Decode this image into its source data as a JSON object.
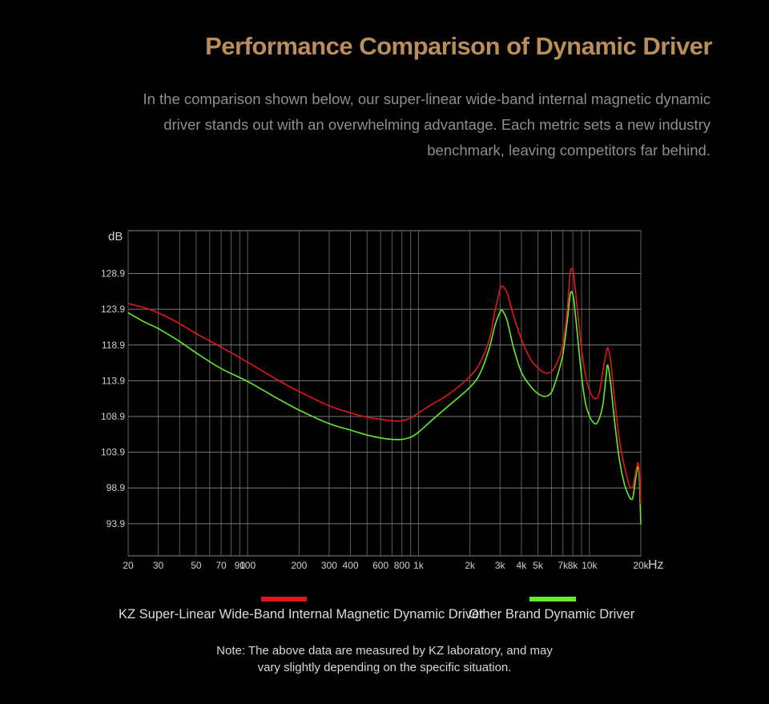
{
  "header": {
    "title": "Performance Comparison of Dynamic Driver",
    "subtitle": "In the comparison shown below, our super-linear wide-band internal magnetic dynamic driver stands out with an overwhelming advantage. Each metric sets a new industry benchmark, leaving competitors far behind."
  },
  "chart_data": {
    "type": "line",
    "x_scale": "log",
    "xlim": [
      20,
      20000
    ],
    "ylim": [
      89.4,
      134.9
    ],
    "ylabel": "dB",
    "xlabel": "Hz",
    "grid": true,
    "y_ticks": [
      128.9,
      123.9,
      118.9,
      113.9,
      108.9,
      103.9,
      98.9,
      93.9
    ],
    "y_tick_labels": [
      "128.9",
      "123.9",
      "118.9",
      "113.9",
      "108.9",
      "103.9",
      "98.9",
      "93.9"
    ],
    "x_ticks": [
      20,
      30,
      50,
      70,
      90,
      100,
      200,
      300,
      400,
      600,
      800,
      1000,
      2000,
      3000,
      4000,
      5000,
      7000,
      8000,
      10000,
      20000
    ],
    "x_tick_labels": [
      "20",
      "30",
      "50",
      "70",
      "90",
      "100",
      "200",
      "300",
      "400",
      "600",
      "800",
      "1k",
      "2k",
      "3k",
      "4k",
      "5k",
      "7k",
      "8k",
      "10k",
      "20k"
    ],
    "x_grid": [
      20,
      30,
      40,
      50,
      60,
      70,
      80,
      90,
      100,
      200,
      300,
      400,
      500,
      600,
      700,
      800,
      900,
      1000,
      2000,
      3000,
      4000,
      5000,
      6000,
      7000,
      8000,
      9000,
      10000,
      20000
    ],
    "series": [
      {
        "name": "KZ Super-Linear Wide-Band Internal Magnetic Dynamic Driver",
        "color": "#e4161c",
        "points": [
          [
            20,
            124.7
          ],
          [
            25,
            124.1
          ],
          [
            30,
            123.4
          ],
          [
            40,
            121.9
          ],
          [
            50,
            120.5
          ],
          [
            70,
            118.6
          ],
          [
            100,
            116.5
          ],
          [
            150,
            114.0
          ],
          [
            200,
            112.4
          ],
          [
            300,
            110.4
          ],
          [
            400,
            109.4
          ],
          [
            500,
            108.8
          ],
          [
            600,
            108.5
          ],
          [
            700,
            108.3
          ],
          [
            800,
            108.3
          ],
          [
            900,
            108.7
          ],
          [
            1000,
            109.4
          ],
          [
            1200,
            110.6
          ],
          [
            1500,
            112.0
          ],
          [
            2000,
            114.5
          ],
          [
            2300,
            116.5
          ],
          [
            2600,
            119.7
          ],
          [
            2800,
            123.6
          ],
          [
            3000,
            126.7
          ],
          [
            3100,
            127.1
          ],
          [
            3300,
            126.2
          ],
          [
            3600,
            123.0
          ],
          [
            4000,
            119.7
          ],
          [
            4500,
            117.0
          ],
          [
            5000,
            115.7
          ],
          [
            5500,
            115.0
          ],
          [
            6000,
            115.2
          ],
          [
            6500,
            116.5
          ],
          [
            7000,
            119.0
          ],
          [
            7400,
            123.5
          ],
          [
            7700,
            128.7
          ],
          [
            7900,
            129.6
          ],
          [
            8100,
            128.6
          ],
          [
            8500,
            124.0
          ],
          [
            9000,
            118.4
          ],
          [
            9500,
            114.6
          ],
          [
            10000,
            112.6
          ],
          [
            10500,
            111.6
          ],
          [
            11000,
            111.4
          ],
          [
            11500,
            112.5
          ],
          [
            12000,
            115.3
          ],
          [
            12500,
            117.6
          ],
          [
            12800,
            118.5
          ],
          [
            13300,
            116.8
          ],
          [
            14000,
            111.6
          ],
          [
            15000,
            105.6
          ],
          [
            16000,
            102.0
          ],
          [
            17000,
            99.5
          ],
          [
            17600,
            98.9
          ],
          [
            18000,
            99.2
          ],
          [
            18500,
            100.6
          ],
          [
            19000,
            102.0
          ],
          [
            19300,
            102.4
          ],
          [
            19600,
            101.2
          ],
          [
            20000,
            96.6
          ]
        ]
      },
      {
        "name": "Other Brand Dynamic Driver",
        "color": "#64ec2a",
        "points": [
          [
            20,
            123.4
          ],
          [
            25,
            122.1
          ],
          [
            30,
            121.2
          ],
          [
            40,
            119.4
          ],
          [
            50,
            117.8
          ],
          [
            70,
            115.6
          ],
          [
            100,
            113.8
          ],
          [
            150,
            111.4
          ],
          [
            200,
            109.8
          ],
          [
            300,
            107.9
          ],
          [
            400,
            107.0
          ],
          [
            500,
            106.3
          ],
          [
            600,
            105.9
          ],
          [
            700,
            105.7
          ],
          [
            800,
            105.7
          ],
          [
            900,
            106.0
          ],
          [
            1000,
            106.7
          ],
          [
            1200,
            108.4
          ],
          [
            1500,
            110.4
          ],
          [
            2000,
            113.0
          ],
          [
            2300,
            115.0
          ],
          [
            2600,
            118.5
          ],
          [
            2800,
            121.6
          ],
          [
            3000,
            123.5
          ],
          [
            3100,
            123.7
          ],
          [
            3300,
            122.3
          ],
          [
            3600,
            118.5
          ],
          [
            4000,
            115.1
          ],
          [
            4500,
            113.2
          ],
          [
            5000,
            112.1
          ],
          [
            5500,
            111.7
          ],
          [
            6000,
            112.3
          ],
          [
            6500,
            114.6
          ],
          [
            7000,
            117.6
          ],
          [
            7400,
            122.0
          ],
          [
            7700,
            125.8
          ],
          [
            7900,
            126.3
          ],
          [
            8100,
            125.2
          ],
          [
            8500,
            120.5
          ],
          [
            9000,
            114.6
          ],
          [
            9500,
            110.7
          ],
          [
            10000,
            109.0
          ],
          [
            10500,
            108.1
          ],
          [
            11000,
            107.9
          ],
          [
            11500,
            108.8
          ],
          [
            12000,
            110.6
          ],
          [
            12500,
            114.4
          ],
          [
            12800,
            116.1
          ],
          [
            13300,
            113.6
          ],
          [
            14000,
            108.5
          ],
          [
            15000,
            102.8
          ],
          [
            16000,
            99.5
          ],
          [
            17000,
            97.8
          ],
          [
            17600,
            97.3
          ],
          [
            18000,
            97.6
          ],
          [
            18500,
            99.6
          ],
          [
            19000,
            101.4
          ],
          [
            19300,
            101.8
          ],
          [
            19600,
            100.2
          ],
          [
            20000,
            93.8
          ]
        ]
      }
    ]
  },
  "legend": [
    {
      "label": "KZ Super-Linear Wide-Band Internal Magnetic Dynamic Driver",
      "color": "#e4161c"
    },
    {
      "label": "Other Brand Dynamic Driver",
      "color": "#64ec2a"
    }
  ],
  "note": {
    "line1": "Note: The above data are measured by KZ laboratory, and may",
    "line2": "vary slightly depending on the specific situation."
  }
}
